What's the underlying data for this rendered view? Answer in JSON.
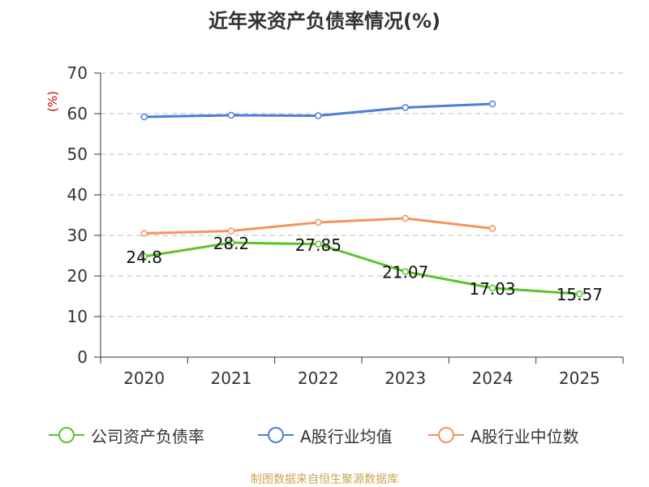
{
  "chart_data": {
    "type": "line",
    "title": "近年来资产负债率情况(%)",
    "ylabel": "(%)",
    "xlabel": "",
    "ylim": [
      0,
      70
    ],
    "yticks": [
      0,
      10,
      20,
      30,
      40,
      50,
      60,
      70
    ],
    "grid": true,
    "legend_position": "bottom",
    "categories": [
      "2020",
      "2021",
      "2022",
      "2023",
      "2024",
      "2025"
    ],
    "series": [
      {
        "name": "公司资产负债率",
        "color": "#5ac42a",
        "values": [
          24.8,
          28.2,
          27.85,
          21.07,
          17.03,
          15.57
        ],
        "labels": [
          "24.8",
          "28.2",
          "27.85",
          "21.07",
          "17.03",
          "15.57"
        ],
        "show_labels": true
      },
      {
        "name": "A股行业均值",
        "color": "#4a7fdb",
        "values": [
          59.2,
          59.6,
          59.5,
          61.5,
          62.4,
          null
        ],
        "show_labels": false
      },
      {
        "name": "A股行业中位数",
        "color": "#f7925e",
        "values": [
          30.5,
          31.1,
          33.2,
          34.2,
          31.7,
          null
        ],
        "show_labels": false
      }
    ]
  },
  "source": "制图数据来自恒生聚源数据库"
}
